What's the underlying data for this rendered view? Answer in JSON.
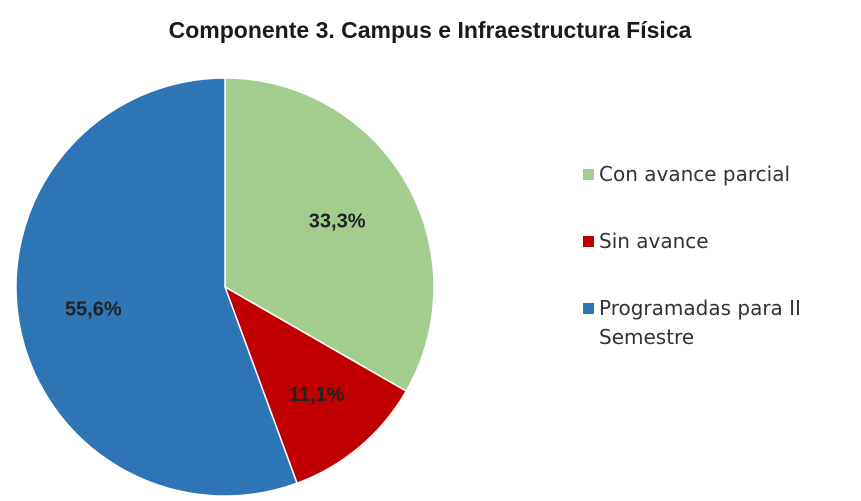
{
  "chart_data": {
    "type": "pie",
    "title": "Componente 3. Campus e Infraestructura Física",
    "categories": [
      "Con avance parcial",
      "Sin avance",
      "Programadas para II Semestre"
    ],
    "values": [
      33.3,
      11.1,
      55.6
    ],
    "value_labels": [
      "33,3%",
      "11,1%",
      "55,6%"
    ],
    "colors": [
      "#a3cd8f",
      "#c00000",
      "#2e75b6"
    ],
    "legend": "right"
  }
}
